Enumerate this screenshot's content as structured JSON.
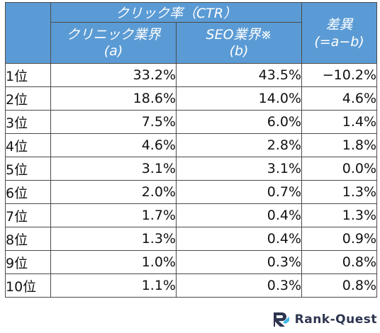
{
  "table": {
    "group_header": "クリック率（CTR）",
    "col_a_title": "クリニック業界",
    "col_a_sub": "(a)",
    "col_b_title": "SEO業界※",
    "col_b_sub": "(b)",
    "diff_title": "差異",
    "diff_sub": "(=a−b)",
    "rows": [
      {
        "rank": "1位",
        "a": "33.2%",
        "b": "43.5%",
        "diff": "−10.2%"
      },
      {
        "rank": "2位",
        "a": "18.6%",
        "b": "14.0%",
        "diff": "4.6%"
      },
      {
        "rank": "3位",
        "a": "7.5%",
        "b": "6.0%",
        "diff": "1.4%"
      },
      {
        "rank": "4位",
        "a": "4.6%",
        "b": "2.8%",
        "diff": "1.8%"
      },
      {
        "rank": "5位",
        "a": "3.1%",
        "b": "3.1%",
        "diff": "0.0%"
      },
      {
        "rank": "6位",
        "a": "2.0%",
        "b": "0.7%",
        "diff": "1.3%"
      },
      {
        "rank": "7位",
        "a": "1.7%",
        "b": "0.4%",
        "diff": "1.3%"
      },
      {
        "rank": "8位",
        "a": "1.3%",
        "b": "0.4%",
        "diff": "0.9%"
      },
      {
        "rank": "9位",
        "a": "1.0%",
        "b": "0.3%",
        "diff": "0.8%"
      },
      {
        "rank": "10位",
        "a": "1.1%",
        "b": "0.3%",
        "diff": "0.8%"
      }
    ]
  },
  "logo": {
    "text": "Rank-Quest",
    "icon": "rank-quest-logo-icon",
    "colors": {
      "text": "#2d3550",
      "accent": "#39b7e8"
    }
  },
  "colors": {
    "header_bg": "#5b9bd5",
    "border": "#4a4a4a"
  }
}
